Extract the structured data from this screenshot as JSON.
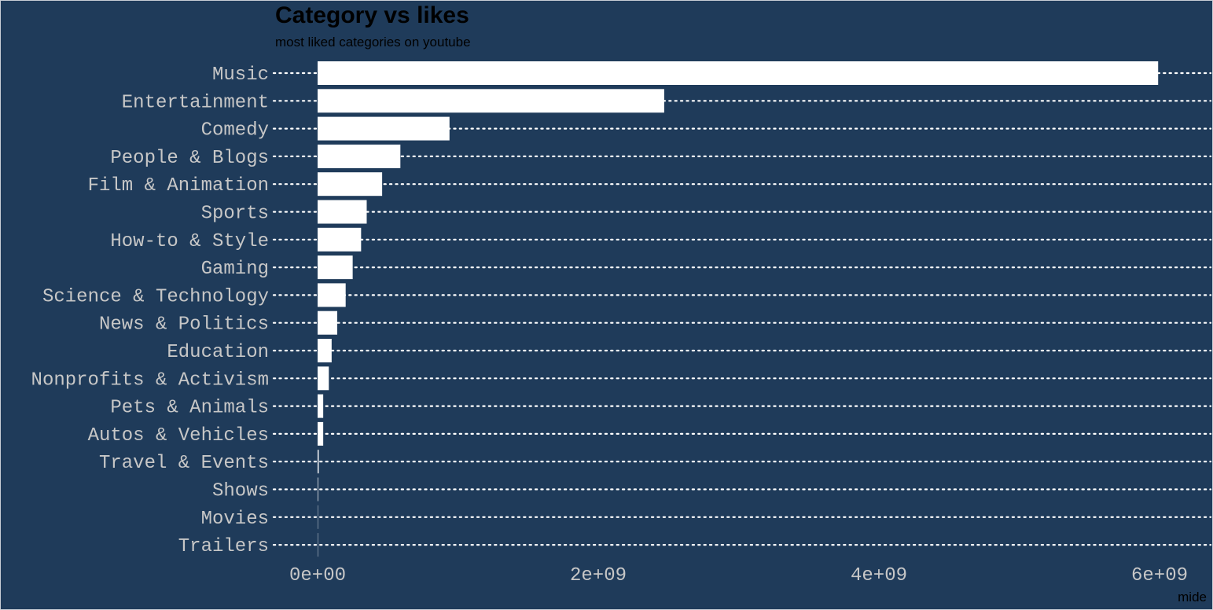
{
  "chart_data": {
    "type": "bar",
    "orientation": "horizontal",
    "title": "Category vs likes",
    "subtitle": "most liked categories on youtube",
    "caption": "mide",
    "categories": [
      "Music",
      "Entertainment",
      "Comedy",
      "People & Blogs",
      "Film & Animation",
      "Sports",
      "How-to & Style",
      "Gaming",
      "Science & Technology",
      "News & Politics",
      "Education",
      "Nonprofits & Activism",
      "Pets & Animals",
      "Autos & Vehicles",
      "Travel & Events",
      "Shows",
      "Movies",
      "Trailers"
    ],
    "values": [
      5990000000,
      2470000000,
      940000000,
      590000000,
      460000000,
      350000000,
      310000000,
      250000000,
      200000000,
      140000000,
      100000000,
      80000000,
      40000000,
      40000000,
      8000000,
      4000000,
      1000000,
      200000
    ],
    "xlim": [
      0,
      6300000000
    ],
    "xticks": [
      0,
      2000000000,
      4000000000,
      6000000000
    ],
    "xtick_labels": [
      "0e+00",
      "2e+09",
      "4e+09",
      "6e+09"
    ],
    "xlabel": "",
    "ylabel": "",
    "grid": "dotted horizontal",
    "legend": "none",
    "colors": {
      "background": "#1f3b5a",
      "bar": "#ffffff",
      "grid": "#ffffff",
      "tick_text": "#c7c7c7",
      "title": "#000000"
    }
  }
}
